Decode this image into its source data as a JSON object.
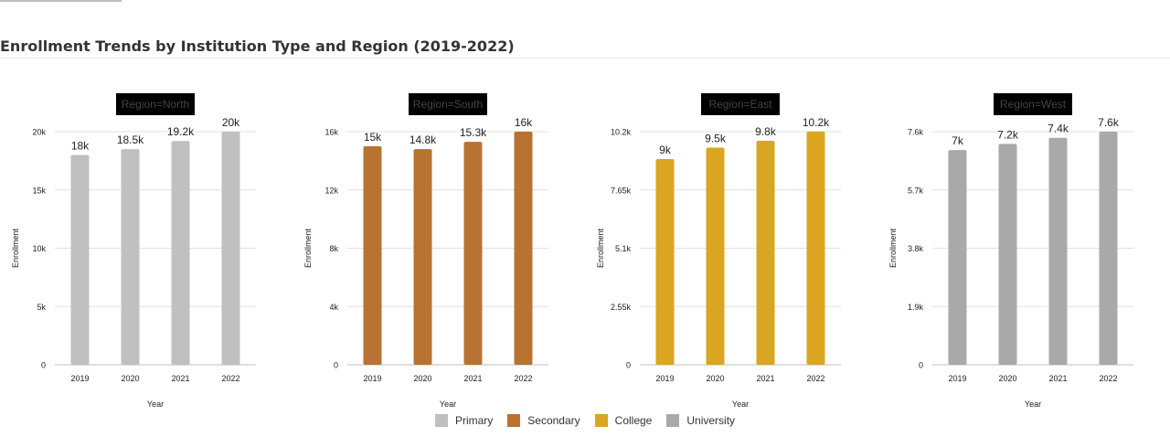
{
  "title": "Enrollment Trends by Institution Type and Region (2019-2022)",
  "chart_data": {
    "type": "bar",
    "xlabel": "Year",
    "ylabel": "Enrollment",
    "categories": [
      "2019",
      "2020",
      "2021",
      "2022"
    ],
    "grid": true,
    "legend_placement": "bottom",
    "panels": [
      {
        "facet": "Region=North",
        "series": "Primary",
        "color": "#c0c0c0",
        "values": [
          18000,
          18500,
          19200,
          20000
        ],
        "labels": [
          "18k",
          "18.5k",
          "19.2k",
          "20k"
        ],
        "yticks": [
          0,
          5000,
          10000,
          15000,
          20000
        ],
        "ytick_labels": [
          "0",
          "5k",
          "10k",
          "15k",
          "20k"
        ],
        "ylim": [
          0,
          20000
        ]
      },
      {
        "facet": "Region=South",
        "series": "Secondary",
        "color": "#b87333",
        "values": [
          15000,
          14800,
          15300,
          16000
        ],
        "labels": [
          "15k",
          "14.8k",
          "15.3k",
          "16k"
        ],
        "yticks": [
          0,
          4000,
          8000,
          12000,
          16000
        ],
        "ytick_labels": [
          "0",
          "4k",
          "8k",
          "12k",
          "16k"
        ],
        "ylim": [
          0,
          16000
        ]
      },
      {
        "facet": "Region=East",
        "series": "College",
        "color": "#daa520",
        "values": [
          9000,
          9500,
          9800,
          10200
        ],
        "labels": [
          "9k",
          "9.5k",
          "9.8k",
          "10.2k"
        ],
        "yticks": [
          0,
          2550,
          5100,
          7650,
          10200
        ],
        "ytick_labels": [
          "0",
          "2.55k",
          "5.1k",
          "7.65k",
          "10.2k"
        ],
        "ylim": [
          0,
          10200
        ]
      },
      {
        "facet": "Region=West",
        "series": "University",
        "color": "#a9a9a9",
        "values": [
          7000,
          7200,
          7400,
          7600
        ],
        "labels": [
          "7k",
          "7.2k",
          "7.4k",
          "7.6k"
        ],
        "yticks": [
          0,
          1900,
          3800,
          5700,
          7600
        ],
        "ytick_labels": [
          "0",
          "1.9k",
          "3.8k",
          "5.7k",
          "7.6k"
        ],
        "ylim": [
          0,
          7600
        ]
      }
    ],
    "legend": [
      {
        "name": "Primary",
        "color": "#c0c0c0"
      },
      {
        "name": "Secondary",
        "color": "#b87333"
      },
      {
        "name": "College",
        "color": "#daa520"
      },
      {
        "name": "University",
        "color": "#a9a9a9"
      }
    ]
  }
}
